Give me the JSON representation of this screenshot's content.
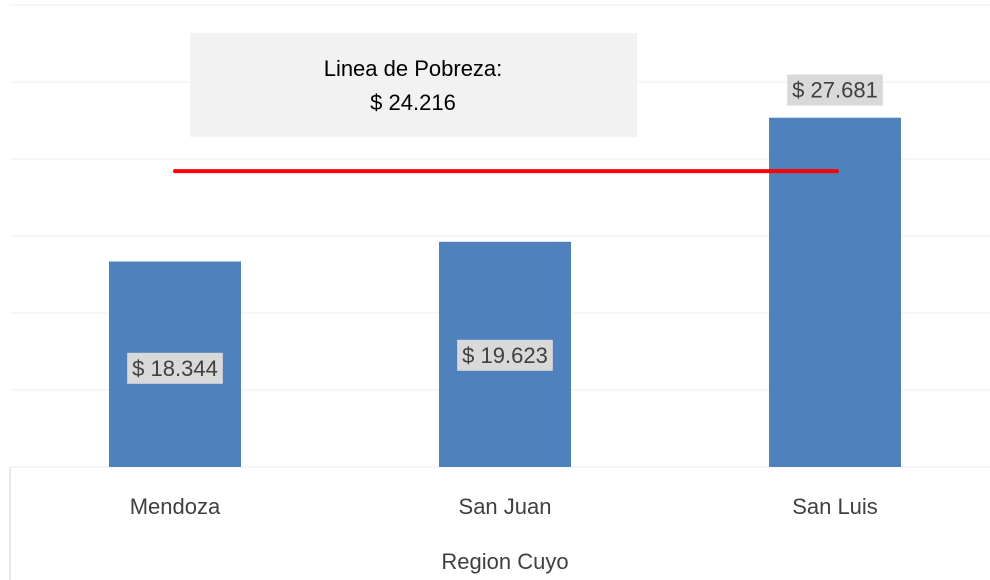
{
  "chart_data": {
    "type": "bar",
    "categories": [
      "Mendoza",
      "San Juan",
      "San Luis"
    ],
    "values": [
      18344,
      19623,
      27681
    ],
    "value_labels": [
      "$ 18.344",
      "$ 19.623",
      "$ 27.681"
    ],
    "color": "#4f81bd",
    "x_label": "Region Cuyo",
    "ylim": [
      5000,
      35000
    ],
    "yticks": [
      5000,
      10000,
      15000,
      20000,
      25000,
      30000,
      35000
    ],
    "grid": true,
    "reference_line": {
      "value": 24216,
      "color": "#ff0000",
      "label": "Linea de Pobreza:",
      "value_label": "$ 24.216"
    }
  }
}
